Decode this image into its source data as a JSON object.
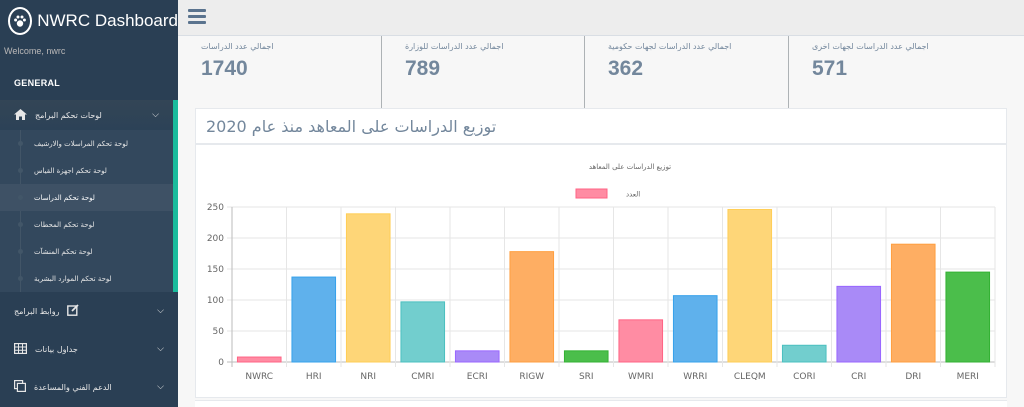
{
  "app": {
    "brand_title": "NWRC Dashboard",
    "welcome": "Welcome, nwrc",
    "section_title": "GENERAL"
  },
  "sidebar": {
    "groups": [
      {
        "label": "لوحات تحكم البرامج",
        "icon": "home-icon",
        "expanded": true,
        "items": [
          {
            "label": "لوحة تحكم المراسلات والارشيف",
            "active": false
          },
          {
            "label": "لوحة تحكم اجهزة القياس",
            "active": false
          },
          {
            "label": "لوحة تحكم الدراسات",
            "active": true
          },
          {
            "label": "لوحة تحكم المحطات",
            "active": false
          },
          {
            "label": "لوحة تحكم المنشآت",
            "active": false
          },
          {
            "label": "لوحة تحكم الموارد البشرية",
            "active": false
          }
        ]
      },
      {
        "label": "روابط البرامج",
        "icon": "edit-icon",
        "expanded": false
      },
      {
        "label": "جداول بيانات",
        "icon": "table-icon",
        "expanded": false
      },
      {
        "label": "الدعم الفني والمساعدة",
        "icon": "clone-icon",
        "expanded": false
      }
    ]
  },
  "stats": [
    {
      "label": "اجمالي عدد الدراسات",
      "value": "1740"
    },
    {
      "label": "اجمالي عدد الدراسات للوزارة",
      "value": "789"
    },
    {
      "label": "اجمالي عدد الدراسات لجهات حكومية",
      "value": "362"
    },
    {
      "label": "اجمالي عدد الدراسات لجهات اخرى",
      "value": "571"
    }
  ],
  "panel": {
    "title": "توزيع الدراسات على المعاهد منذ عام 2020"
  },
  "chart_data": {
    "type": "bar",
    "title": "توزيع الدراسات على المعاهد",
    "legend": "top",
    "grid": true,
    "ylim": [
      0,
      250
    ],
    "yticks": [
      0,
      50,
      100,
      150,
      200,
      250
    ],
    "categories": [
      "NWRC",
      "HRI",
      "NRI",
      "CMRI",
      "ECRI",
      "RIGW",
      "SRI",
      "WMRI",
      "WRRI",
      "CLEQM",
      "CORI",
      "CRI",
      "DRI",
      "MERI"
    ],
    "series": [
      {
        "name": "العدد",
        "legend_color": "#FF6384",
        "values": [
          8,
          137,
          239,
          97,
          18,
          178,
          18,
          68,
          107,
          246,
          27,
          122,
          190,
          145
        ]
      }
    ],
    "bar_fills": [
      "#FF8CA3",
      "#5FB1EC",
      "#FED678",
      "#72CECE",
      "#A98AF7",
      "#FEAE63",
      "#4BBE4B",
      "#FF8CA3",
      "#5FB1EC",
      "#FED678",
      "#72CECE",
      "#A98AF7",
      "#FEAE63",
      "#4BBE4B"
    ],
    "bar_strokes": [
      "#FF6384",
      "#36A2EB",
      "#FFCE56",
      "#4BC0C0",
      "#9966FF",
      "#FF9F40",
      "#33B233",
      "#FF6384",
      "#36A2EB",
      "#FFCE56",
      "#4BC0C0",
      "#9966FF",
      "#FF9F40",
      "#33B233"
    ]
  }
}
